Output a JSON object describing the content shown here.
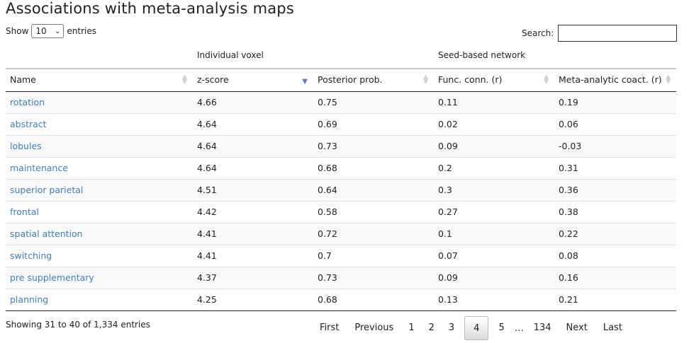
{
  "page": {
    "title": "Associations with meta-analysis maps"
  },
  "length_menu": {
    "show_label": "Show",
    "selected": "10",
    "entries_label": "entries"
  },
  "search": {
    "label": "Search:",
    "value": ""
  },
  "groups": {
    "voxel": "Individual voxel",
    "network": "Seed-based network"
  },
  "columns": [
    "Name",
    "z-score",
    "Posterior prob.",
    "Func. conn. (r)",
    "Meta-analytic coact. (r)"
  ],
  "rows": [
    [
      "rotation",
      "4.66",
      "0.75",
      "0.11",
      "0.19"
    ],
    [
      "abstract",
      "4.64",
      "0.69",
      "0.02",
      "0.06"
    ],
    [
      "lobules",
      "4.64",
      "0.73",
      "0.09",
      "-0.03"
    ],
    [
      "maintenance",
      "4.64",
      "0.68",
      "0.2",
      "0.31"
    ],
    [
      "superior parietal",
      "4.51",
      "0.64",
      "0.3",
      "0.36"
    ],
    [
      "frontal",
      "4.42",
      "0.58",
      "0.27",
      "0.38"
    ],
    [
      "spatial attention",
      "4.41",
      "0.72",
      "0.1",
      "0.22"
    ],
    [
      "switching",
      "4.41",
      "0.7",
      "0.07",
      "0.08"
    ],
    [
      "pre supplementary",
      "4.37",
      "0.73",
      "0.09",
      "0.16"
    ],
    [
      "planning",
      "4.25",
      "0.68",
      "0.13",
      "0.21"
    ]
  ],
  "info": "Showing 31 to 40 of 1,334 entries",
  "pagination": {
    "first": "First",
    "previous": "Previous",
    "pages": [
      "1",
      "2",
      "3",
      "4",
      "5"
    ],
    "current": "4",
    "ellipsis": "…",
    "last_page": "134",
    "next": "Next",
    "last": "Last"
  },
  "colors": {
    "link": "#3f7fbf",
    "sort_active": "#6b74c6"
  }
}
